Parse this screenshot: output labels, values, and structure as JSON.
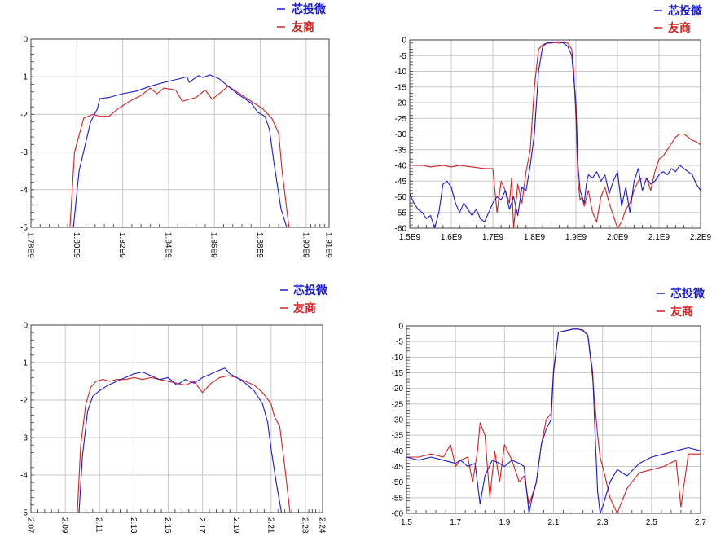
{
  "legend": {
    "entries": [
      {
        "label": "芯投微",
        "color": "#1a1acd"
      },
      {
        "label": "友商",
        "color": "#d42020"
      }
    ]
  },
  "chart_data": [
    {
      "type": "line",
      "grid": true,
      "xlim": [
        1.78,
        1.91
      ],
      "ylim": [
        -5,
        0
      ],
      "x_tick_labels": [
        "1.78E9",
        "1.80E9",
        "1.82E9",
        "1.84E9",
        "1.86E9",
        "1.88E9",
        "1.90E9",
        "1.91E9"
      ],
      "x_tick_values": [
        1.78,
        1.8,
        1.82,
        1.84,
        1.86,
        1.88,
        1.9,
        1.91
      ],
      "x_tick_rotated": true,
      "y_tick_labels": [
        "0",
        "-1",
        "-2",
        "-3",
        "-4",
        "-5"
      ],
      "y_tick_values": [
        0,
        -1,
        -2,
        -3,
        -4,
        -5
      ],
      "series": [
        {
          "name": "芯投微",
          "color": "#1a1acd",
          "x": [
            1.7985,
            1.801,
            1.806,
            1.809,
            1.81,
            1.814,
            1.82,
            1.826,
            1.832,
            1.838,
            1.845,
            1.848,
            1.849,
            1.853,
            1.855,
            1.858,
            1.862,
            1.866,
            1.87,
            1.876,
            1.879,
            1.882,
            1.884,
            1.886,
            1.889,
            1.8915
          ],
          "y": [
            -5,
            -3.5,
            -2.2,
            -1.85,
            -1.58,
            -1.55,
            -1.45,
            -1.38,
            -1.25,
            -1.15,
            -1.05,
            -1,
            -1.15,
            -0.97,
            -1.02,
            -0.95,
            -1.05,
            -1.25,
            -1.45,
            -1.7,
            -1.95,
            -2.05,
            -2.4,
            -3.3,
            -4.5,
            -5
          ]
        },
        {
          "name": "友商",
          "color": "#d42020",
          "x": [
            1.797,
            1.799,
            1.803,
            1.807,
            1.81,
            1.814,
            1.818,
            1.823,
            1.828,
            1.832,
            1.835,
            1.838,
            1.843,
            1.846,
            1.849,
            1.852,
            1.856,
            1.859,
            1.862,
            1.866,
            1.871,
            1.876,
            1.881,
            1.885,
            1.888,
            1.8895,
            1.8925
          ],
          "y": [
            -5,
            -3,
            -2.1,
            -2,
            -2.05,
            -2.05,
            -1.85,
            -1.65,
            -1.5,
            -1.3,
            -1.45,
            -1.3,
            -1.35,
            -1.65,
            -1.6,
            -1.55,
            -1.35,
            -1.6,
            -1.45,
            -1.25,
            -1.45,
            -1.65,
            -1.85,
            -2.1,
            -2.5,
            -3.5,
            -5
          ]
        }
      ]
    },
    {
      "type": "line",
      "grid": true,
      "xlim": [
        1.5,
        2.2
      ],
      "ylim": [
        -60,
        0
      ],
      "x_tick_labels": [
        "1.5E9",
        "1.6E9",
        "1.7E9",
        "1.8E9",
        "1.9E9",
        "2.0E9",
        "2.1E9",
        "2.2E9"
      ],
      "x_tick_values": [
        1.5,
        1.6,
        1.7,
        1.8,
        1.9,
        2.0,
        2.1,
        2.2
      ],
      "x_tick_rotated": false,
      "y_tick_labels": [
        "0",
        "-5",
        "-10",
        "-15",
        "-20",
        "-25",
        "-30",
        "-35",
        "-40",
        "-45",
        "-50",
        "-55",
        "-60"
      ],
      "y_tick_values": [
        0,
        -5,
        -10,
        -15,
        -20,
        -25,
        -30,
        -35,
        -40,
        -45,
        -50,
        -55,
        -60
      ],
      "series": [
        {
          "name": "芯投微",
          "color": "#1a1acd",
          "x": [
            1.5,
            1.51,
            1.52,
            1.53,
            1.54,
            1.55,
            1.56,
            1.57,
            1.58,
            1.59,
            1.6,
            1.61,
            1.62,
            1.63,
            1.64,
            1.65,
            1.66,
            1.67,
            1.68,
            1.69,
            1.7,
            1.71,
            1.72,
            1.73,
            1.74,
            1.75,
            1.76,
            1.77,
            1.78,
            1.79,
            1.8,
            1.81,
            1.82,
            1.83,
            1.84,
            1.85,
            1.86,
            1.87,
            1.88,
            1.89,
            1.9,
            1.905,
            1.91,
            1.915,
            1.92,
            1.925,
            1.93,
            1.94,
            1.95,
            1.96,
            1.97,
            1.98,
            1.99,
            2.0,
            2.01,
            2.02,
            2.03,
            2.04,
            2.05,
            2.06,
            2.07,
            2.08,
            2.09,
            2.1,
            2.11,
            2.12,
            2.13,
            2.14,
            2.15,
            2.16,
            2.17,
            2.18,
            2.19,
            2.2
          ],
          "y": [
            -49,
            -52,
            -54,
            -55,
            -57,
            -56,
            -60,
            -55,
            -46,
            -45,
            -47,
            -52,
            -55,
            -52,
            -54,
            -56,
            -54,
            -57,
            -58,
            -55,
            -52,
            -50,
            -51,
            -48,
            -54,
            -50,
            -56,
            -47,
            -48,
            -40,
            -30,
            -10,
            -2,
            -1,
            -0.8,
            -0.7,
            -0.6,
            -1,
            -2,
            -5,
            -20,
            -40,
            -48,
            -50,
            -52,
            -46,
            -43,
            -44,
            -42,
            -45,
            -43,
            -49,
            -45,
            -42,
            -53,
            -47,
            -55,
            -45,
            -41,
            -48,
            -44,
            -46,
            -45,
            -43,
            -42,
            -43,
            -41,
            -42,
            -40,
            -41,
            -42,
            -43,
            -46,
            -48
          ]
        },
        {
          "name": "友商",
          "color": "#d42020",
          "x": [
            1.5,
            1.53,
            1.55,
            1.58,
            1.6,
            1.62,
            1.65,
            1.68,
            1.7,
            1.71,
            1.72,
            1.73,
            1.74,
            1.745,
            1.75,
            1.76,
            1.77,
            1.78,
            1.79,
            1.8,
            1.81,
            1.82,
            1.83,
            1.84,
            1.85,
            1.86,
            1.87,
            1.88,
            1.89,
            1.895,
            1.9,
            1.905,
            1.91,
            1.915,
            1.92,
            1.93,
            1.94,
            1.95,
            1.96,
            1.97,
            1.98,
            1.99,
            2.0,
            2.01,
            2.02,
            2.03,
            2.04,
            2.05,
            2.06,
            2.07,
            2.08,
            2.09,
            2.1,
            2.11,
            2.12,
            2.13,
            2.14,
            2.15,
            2.16,
            2.17,
            2.18,
            2.19,
            2.2
          ],
          "y": [
            -40,
            -40,
            -40.5,
            -40,
            -40.5,
            -40,
            -40.5,
            -41,
            -41,
            -55,
            -45,
            -48,
            -52,
            -44,
            -60,
            -46,
            -52,
            -42,
            -35,
            -15,
            -3,
            -1.5,
            -1,
            -1,
            -0.8,
            -1,
            -0.8,
            -1,
            -3,
            -10,
            -25,
            -45,
            -51,
            -50,
            -53,
            -48,
            -55,
            -58,
            -50,
            -47,
            -52,
            -56,
            -60,
            -58,
            -54,
            -52,
            -48,
            -45,
            -44,
            -44,
            -48,
            -42,
            -38,
            -37,
            -35,
            -33,
            -31,
            -30,
            -30,
            -31,
            -32,
            -32.5,
            -33.5
          ]
        }
      ]
    },
    {
      "type": "line",
      "grid": true,
      "xlim": [
        2.07,
        2.24
      ],
      "ylim": [
        -5,
        0
      ],
      "x_tick_labels": [
        "2.07",
        "2.09",
        "2.11",
        "2.13",
        "2.15",
        "2.17",
        "2.19",
        "2.21",
        "2.23",
        "2.24"
      ],
      "x_tick_values": [
        2.07,
        2.09,
        2.11,
        2.13,
        2.15,
        2.17,
        2.19,
        2.21,
        2.23,
        2.24
      ],
      "x_tick_rotated": true,
      "y_tick_labels": [
        "0",
        "-1",
        "-2",
        "-3",
        "-4",
        "-5"
      ],
      "y_tick_values": [
        0,
        -1,
        -2,
        -3,
        -4,
        -5
      ],
      "series": [
        {
          "name": "芯投微",
          "color": "#1a1acd",
          "x": [
            2.098,
            2.1,
            2.103,
            2.106,
            2.11,
            2.115,
            2.12,
            2.125,
            2.13,
            2.135,
            2.14,
            2.145,
            2.15,
            2.155,
            2.16,
            2.165,
            2.17,
            2.175,
            2.18,
            2.183,
            2.186,
            2.19,
            2.195,
            2.2,
            2.205,
            2.208,
            2.21,
            2.213,
            2.216
          ],
          "y": [
            -5,
            -3.5,
            -2.3,
            -1.9,
            -1.75,
            -1.6,
            -1.5,
            -1.4,
            -1.3,
            -1.25,
            -1.35,
            -1.45,
            -1.4,
            -1.6,
            -1.45,
            -1.55,
            -1.4,
            -1.3,
            -1.2,
            -1.15,
            -1.3,
            -1.4,
            -1.55,
            -1.75,
            -2.1,
            -2.6,
            -3.3,
            -4.2,
            -5
          ]
        },
        {
          "name": "友商",
          "color": "#d42020",
          "x": [
            2.097,
            2.099,
            2.102,
            2.105,
            2.108,
            2.112,
            2.116,
            2.12,
            2.125,
            2.13,
            2.135,
            2.14,
            2.145,
            2.15,
            2.155,
            2.16,
            2.165,
            2.17,
            2.175,
            2.18,
            2.185,
            2.19,
            2.195,
            2.2,
            2.205,
            2.21,
            2.212,
            2.215,
            2.218,
            2.221
          ],
          "y": [
            -5,
            -3.2,
            -2.1,
            -1.65,
            -1.5,
            -1.45,
            -1.5,
            -1.45,
            -1.45,
            -1.4,
            -1.45,
            -1.4,
            -1.45,
            -1.5,
            -1.55,
            -1.6,
            -1.5,
            -1.8,
            -1.55,
            -1.4,
            -1.35,
            -1.4,
            -1.5,
            -1.6,
            -1.8,
            -2.1,
            -2.45,
            -2.7,
            -3.8,
            -5
          ]
        }
      ]
    },
    {
      "type": "line",
      "grid": true,
      "xlim": [
        1.5,
        2.7
      ],
      "ylim": [
        -60,
        0
      ],
      "x_tick_labels": [
        "1.5",
        "1.7",
        "1.9",
        "2.1",
        "2.3",
        "2.5",
        "2.7"
      ],
      "x_tick_values": [
        1.5,
        1.7,
        1.9,
        2.1,
        2.3,
        2.5,
        2.7
      ],
      "x_tick_rotated": false,
      "y_tick_labels": [
        "0",
        "-5",
        "-10",
        "-15",
        "-20",
        "-25",
        "-30",
        "-35",
        "-40",
        "-45",
        "-50",
        "-55",
        "-60"
      ],
      "y_tick_values": [
        0,
        -5,
        -10,
        -15,
        -20,
        -25,
        -30,
        -35,
        -40,
        -45,
        -50,
        -55,
        -60
      ],
      "series": [
        {
          "name": "芯投微",
          "color": "#1a1acd",
          "x": [
            1.5,
            1.55,
            1.6,
            1.65,
            1.7,
            1.72,
            1.75,
            1.78,
            1.8,
            1.82,
            1.85,
            1.88,
            1.9,
            1.93,
            1.96,
            1.98,
            2.0,
            2.01,
            2.03,
            2.05,
            2.07,
            2.09,
            2.1,
            2.12,
            2.15,
            2.18,
            2.2,
            2.22,
            2.24,
            2.26,
            2.27,
            2.28,
            2.29,
            2.3,
            2.33,
            2.36,
            2.4,
            2.45,
            2.5,
            2.55,
            2.6,
            2.65,
            2.7
          ],
          "y": [
            -42,
            -43,
            -42,
            -43,
            -44,
            -43,
            -45,
            -44,
            -57,
            -48,
            -43,
            -44,
            -45,
            -43,
            -44,
            -45,
            -60,
            -56,
            -50,
            -38,
            -33,
            -30,
            -15,
            -2,
            -1.5,
            -1,
            -1,
            -1.3,
            -3,
            -15,
            -35,
            -53,
            -60,
            -58,
            -50,
            -46,
            -48,
            -44,
            -42,
            -41,
            -40,
            -39,
            -40
          ]
        },
        {
          "name": "友商",
          "color": "#d42020",
          "x": [
            1.5,
            1.55,
            1.6,
            1.65,
            1.68,
            1.7,
            1.72,
            1.75,
            1.77,
            1.79,
            1.8,
            1.82,
            1.84,
            1.86,
            1.88,
            1.9,
            1.93,
            1.96,
            1.98,
            2.0,
            2.01,
            2.03,
            2.05,
            2.07,
            2.09,
            2.1,
            2.12,
            2.15,
            2.18,
            2.2,
            2.22,
            2.24,
            2.26,
            2.28,
            2.29,
            2.31,
            2.33,
            2.36,
            2.4,
            2.45,
            2.5,
            2.55,
            2.6,
            2.62,
            2.65,
            2.7
          ],
          "y": [
            -42,
            -42,
            -41,
            -42,
            -38,
            -45,
            -43,
            -42,
            -50,
            -40,
            -31,
            -35,
            -55,
            -40,
            -50,
            -38,
            -43,
            -50,
            -48,
            -57,
            -55,
            -50,
            -38,
            -30,
            -28,
            -14,
            -2,
            -1.5,
            -1,
            -1,
            -1.5,
            -3,
            -17,
            -35,
            -42,
            -48,
            -55,
            -60,
            -52,
            -47,
            -46,
            -45,
            -43,
            -58,
            -41,
            -41
          ]
        }
      ]
    }
  ]
}
